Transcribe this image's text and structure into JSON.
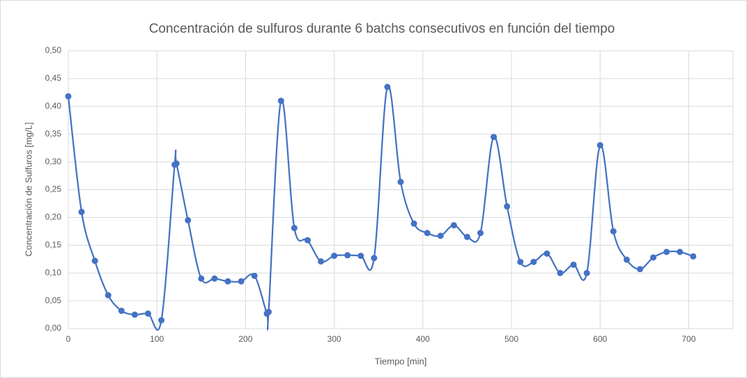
{
  "chart_data": {
    "type": "scatter",
    "title": "Concentración de sulfuros durante 6 batchs consecutivos en función del tiempo",
    "x_label": "Tiempo [min]",
    "y_label": "Concentración de Sulfuros [mg/L]",
    "smooth": true,
    "grid": true,
    "xlim": [
      0,
      750
    ],
    "xticks": [
      0,
      100,
      200,
      300,
      400,
      500,
      600,
      700
    ],
    "ylim": [
      0,
      0.5
    ],
    "yticks": [
      {
        "value": 0,
        "label": "0,00"
      },
      {
        "value": 0.05,
        "label": "0,05"
      },
      {
        "value": 0.1,
        "label": "0,10"
      },
      {
        "value": 0.15,
        "label": "0,15"
      },
      {
        "value": 0.2,
        "label": "0,20"
      },
      {
        "value": 0.25,
        "label": "0,25"
      },
      {
        "value": 0.3,
        "label": "0,30"
      },
      {
        "value": 0.35,
        "label": "0,35"
      },
      {
        "value": 0.4,
        "label": "0,40"
      },
      {
        "value": 0.45,
        "label": "0,45"
      },
      {
        "value": 0.5,
        "label": "0,50"
      }
    ],
    "series": [
      {
        "color": "#4472c4",
        "x": [
          0,
          15,
          30,
          45,
          60,
          75,
          90,
          105,
          120,
          122,
          135,
          150,
          165,
          180,
          195,
          210,
          224,
          226,
          240,
          255,
          270,
          285,
          300,
          315,
          330,
          345,
          360,
          375,
          390,
          405,
          420,
          435,
          450,
          465,
          480,
          495,
          510,
          525,
          540,
          555,
          570,
          585,
          600,
          615,
          630,
          645,
          660,
          675,
          690,
          705
        ],
        "values": [
          0.418,
          0.21,
          0.122,
          0.06,
          0.032,
          0.025,
          0.027,
          0.015,
          0.295,
          0.297,
          0.195,
          0.09,
          0.09,
          0.085,
          0.085,
          0.095,
          0.027,
          0.03,
          0.41,
          0.181,
          0.159,
          0.121,
          0.131,
          0.132,
          0.131,
          0.127,
          0.435,
          0.264,
          0.189,
          0.172,
          0.167,
          0.186,
          0.165,
          0.172,
          0.345,
          0.22,
          0.12,
          0.12,
          0.135,
          0.1,
          0.115,
          0.1,
          0.33,
          0.175,
          0.124,
          0.107,
          0.128,
          0.138,
          0.138,
          0.13
        ]
      }
    ]
  }
}
